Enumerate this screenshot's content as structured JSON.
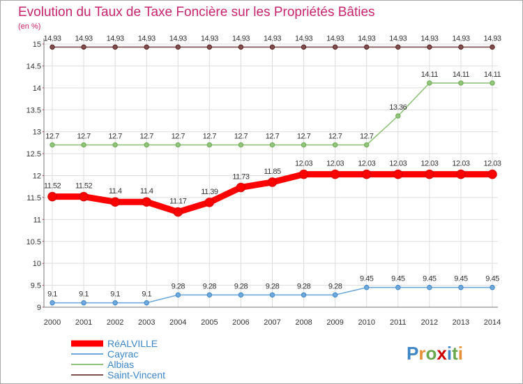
{
  "colors": {
    "title": "#c8246d",
    "grid": "#dddddd",
    "axis": "#777777",
    "plot_bg": "#ffffff"
  },
  "logo": {
    "text": "Proxiti"
  },
  "chart_data": {
    "type": "line",
    "title": "Evolution du Taux de Taxe Foncière sur les Propriétés Bâties",
    "ylabel": "(en %)",
    "xlabel": "",
    "categories": [
      "2000",
      "2001",
      "2002",
      "2003",
      "2004",
      "2005",
      "2006",
      "2007",
      "2008",
      "2009",
      "2010",
      "2011",
      "2012",
      "2013",
      "2014"
    ],
    "yticks": [
      "9",
      "9.5",
      "10",
      "10.5",
      "11",
      "11.5",
      "12",
      "12.5",
      "13",
      "13.5",
      "14",
      "14.5",
      "15"
    ],
    "ylim": [
      9,
      15
    ],
    "grid": true,
    "legend_position": "bottom-left",
    "series": [
      {
        "name": "RéALVILLE",
        "color": "#ff0000",
        "marker_color": "#e00000",
        "emphasis": true,
        "values": [
          11.52,
          11.52,
          11.4,
          11.4,
          11.17,
          11.39,
          11.73,
          11.85,
          12.03,
          12.03,
          12.03,
          12.03,
          12.03,
          12.03,
          12.03
        ],
        "labels": [
          "11.52",
          "11.52",
          "11.4",
          "11.4",
          "11.17",
          "11.39",
          "11.73",
          "11.85",
          "12.03",
          "12.03",
          "12.03",
          "12.03",
          "12.03",
          "12.03",
          "12.03"
        ]
      },
      {
        "name": "Cayrac",
        "color": "#6fa8dc",
        "marker_color": "#3d85c6",
        "emphasis": false,
        "values": [
          9.1,
          9.1,
          9.1,
          9.1,
          9.28,
          9.28,
          9.28,
          9.28,
          9.28,
          9.28,
          9.45,
          9.45,
          9.45,
          9.45,
          9.45
        ],
        "labels": [
          "9.1",
          "9.1",
          "9.1",
          "9.1",
          "9.28",
          "9.28",
          "9.28",
          "9.28",
          "9.28",
          "9.28",
          "9.45",
          "9.45",
          "9.45",
          "9.45",
          "9.45"
        ]
      },
      {
        "name": "Albias",
        "color": "#93c47d",
        "marker_color": "#6aa84f",
        "emphasis": false,
        "values": [
          12.7,
          12.7,
          12.7,
          12.7,
          12.7,
          12.7,
          12.7,
          12.7,
          12.7,
          12.7,
          12.7,
          13.36,
          14.11,
          14.11,
          14.11
        ],
        "labels": [
          "12.7",
          "12.7",
          "12.7",
          "12.7",
          "12.7",
          "12.7",
          "12.7",
          "12.7",
          "12.7",
          "12.7",
          "12.7",
          "13.36",
          "14.11",
          "14.11",
          "14.11"
        ]
      },
      {
        "name": "Saint-Vincent",
        "color": "#7f4f4f",
        "marker_color": "#5b2020",
        "emphasis": false,
        "values": [
          14.93,
          14.93,
          14.93,
          14.93,
          14.93,
          14.93,
          14.93,
          14.93,
          14.93,
          14.93,
          14.93,
          14.93,
          14.93,
          14.93,
          14.93
        ],
        "labels": [
          "14.93",
          "14.93",
          "14.93",
          "14.93",
          "14.93",
          "14.93",
          "14.93",
          "14.93",
          "14.93",
          "14.93",
          "14.93",
          "14.93",
          "14.93",
          "14.93",
          "14.93"
        ]
      }
    ]
  }
}
